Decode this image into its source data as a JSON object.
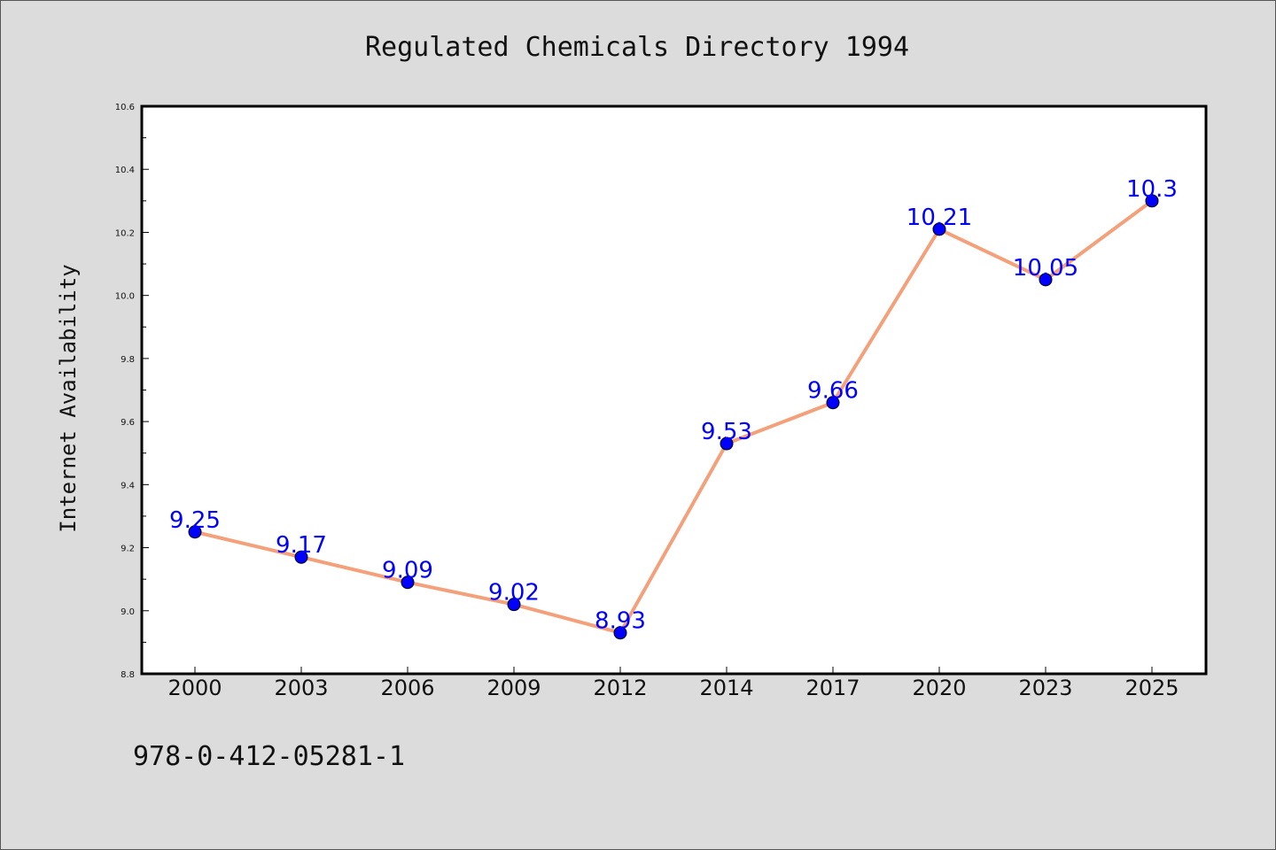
{
  "chart_data": {
    "type": "line",
    "title": "Regulated Chemicals Directory 1994",
    "xlabel": "",
    "ylabel": "Internet Availability",
    "categories": [
      "2000",
      "2003",
      "2006",
      "2009",
      "2012",
      "2014",
      "2017",
      "2020",
      "2023",
      "2025"
    ],
    "series": [
      {
        "values": [
          9.25,
          9.17,
          9.09,
          9.02,
          8.93,
          9.53,
          9.66,
          10.21,
          10.05,
          10.3
        ]
      }
    ],
    "data_labels": [
      "9.25",
      "9.17",
      "9.09",
      "9.02",
      "8.93",
      "9.53",
      "9.66",
      "10.21",
      "10.05",
      "10.3"
    ],
    "ylim": [
      8.8,
      10.6
    ],
    "yticks": [
      8.8,
      9.0,
      9.2,
      9.4,
      9.6,
      9.8,
      10.0,
      10.2,
      10.4,
      10.6
    ],
    "ytick_labels": [
      "8.8",
      "9.0",
      "9.2",
      "9.4",
      "9.6",
      "9.8",
      "10.0",
      "10.2",
      "10.4",
      "10.6"
    ],
    "grid": false,
    "legend": "none",
    "colors": {
      "line": "#f4a07a",
      "marker": "#0000ff",
      "label": "#0000ff",
      "background": "#dcdcdc",
      "plot_bg": "#ffffff"
    }
  },
  "footer": {
    "isbn": "978-0-412-05281-1"
  }
}
